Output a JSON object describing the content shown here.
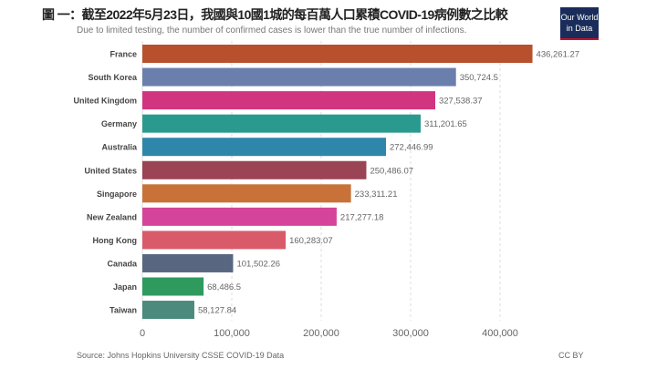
{
  "header": {
    "title": "圖 一：截至2022年5月23日，我國與10國1城的每百萬人口累積COVID-19病例數之比較",
    "subtitle": "Due to limited testing, the number of confirmed cases is lower than the true number of infections.",
    "logo": "Our World in Data"
  },
  "footer": {
    "source": "Source: Johns Hopkins University CSSE COVID-19 Data",
    "license": "CC BY"
  },
  "chart_data": {
    "type": "bar",
    "orientation": "horizontal",
    "title": "",
    "xlabel": "",
    "ylabel": "",
    "xlim": [
      0,
      440000
    ],
    "grid": true,
    "categories": [
      "France",
      "South Korea",
      "United Kingdom",
      "Germany",
      "Australia",
      "United States",
      "Singapore",
      "New Zealand",
      "Hong Kong",
      "Canada",
      "Japan",
      "Taiwan"
    ],
    "values": [
      436261.27,
      350724.5,
      327538.37,
      311201.65,
      272446.99,
      250486.07,
      233311.21,
      217277.18,
      160283.07,
      101502.26,
      68486.5,
      58127.84
    ],
    "value_labels": [
      "436,261.27",
      "350,724.5",
      "327,538.37",
      "311,201.65",
      "272,446.99",
      "250,486.07",
      "233,311.21",
      "217,277.18",
      "160,283.07",
      "101,502.26",
      "68,486.5",
      "58,127.84"
    ],
    "colors": [
      "#b9502d",
      "#6b7fad",
      "#d2357f",
      "#2a9a8e",
      "#2f86ab",
      "#9a4456",
      "#c8723a",
      "#d5439a",
      "#d95b6a",
      "#586680",
      "#2f9a5e",
      "#4b8a7d"
    ],
    "ticks": [
      0,
      100000,
      200000,
      300000,
      400000
    ],
    "tick_labels": [
      "0",
      "100,000",
      "200,000",
      "300,000",
      "400,000"
    ]
  }
}
